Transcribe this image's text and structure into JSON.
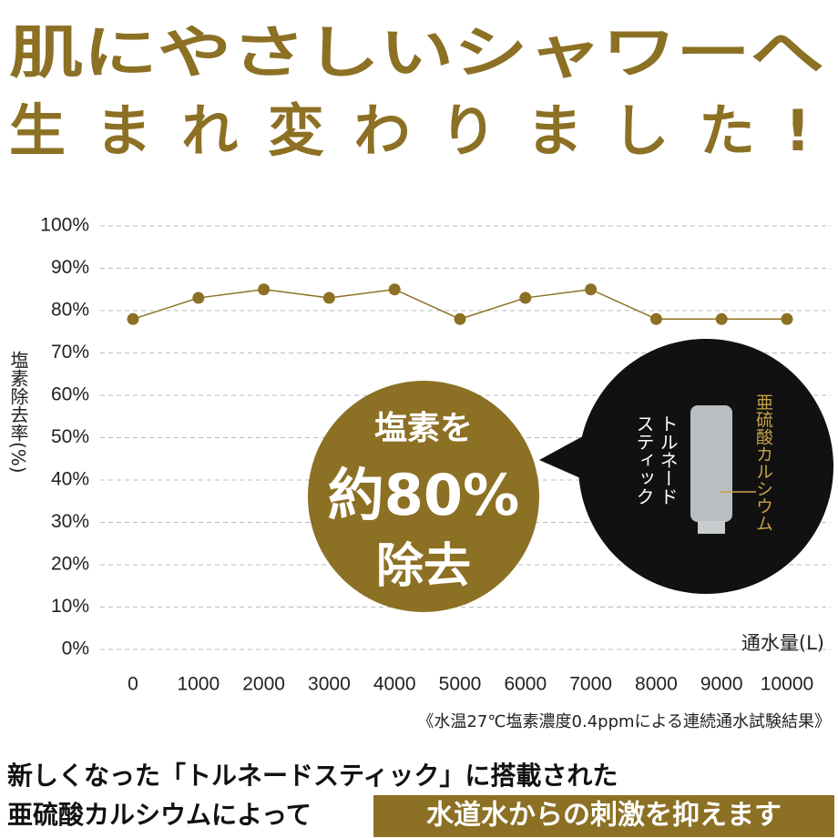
{
  "chart_data": {
    "type": "line",
    "title": "肌にやさしいシャワーへ",
    "subtitle": "生まれ変わりました!",
    "y_label": "塩素除去率(%)",
    "x_label": "通水量(L)",
    "note": "《水温27℃塩素濃度0.4ppmによる連続通水試験結果》",
    "x": [
      0,
      1000,
      2000,
      3000,
      4000,
      5000,
      6000,
      7000,
      8000,
      9000,
      10000
    ],
    "series": [
      {
        "name": "塩素除去率",
        "color": "#8c7024",
        "values": [
          78,
          83,
          85,
          83,
          85,
          78,
          83,
          85,
          78,
          78,
          78
        ]
      }
    ],
    "xlim": [
      0,
      10000
    ],
    "ylim": [
      0,
      100
    ],
    "yticks": [
      {
        "value": 0,
        "label": "0%"
      },
      {
        "value": 10,
        "label": "10%"
      },
      {
        "value": 20,
        "label": "20%"
      },
      {
        "value": 30,
        "label": "30%"
      },
      {
        "value": 40,
        "label": "40%"
      },
      {
        "value": 50,
        "label": "50%"
      },
      {
        "value": 60,
        "label": "60%"
      },
      {
        "value": 70,
        "label": "70%"
      },
      {
        "value": 80,
        "label": "80%"
      },
      {
        "value": 90,
        "label": "90%"
      },
      {
        "value": 100,
        "label": "100%"
      }
    ],
    "grid": true,
    "callout": {
      "lines": [
        "塩素を",
        "約80%",
        "除去"
      ]
    },
    "inset": {
      "product": [
        "トルネード",
        "スティック"
      ],
      "material": "亜硫酸カルシウム"
    },
    "footer": {
      "line1": "新しくなった「トルネードスティック」に搭載された",
      "line2": "亜硫酸カルシウムによって",
      "highlight": "水道水からの刺激を抑えます"
    }
  }
}
